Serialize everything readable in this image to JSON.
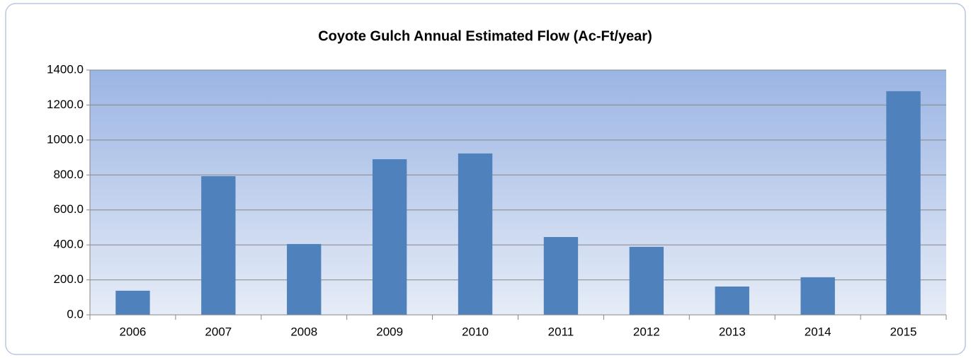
{
  "chart_data": {
    "type": "bar",
    "title": "Coyote Gulch Annual Estimated Flow (Ac-Ft/year)",
    "categories": [
      "2006",
      "2007",
      "2008",
      "2009",
      "2010",
      "2011",
      "2012",
      "2013",
      "2014",
      "2015"
    ],
    "values": [
      138,
      793,
      405,
      890,
      923,
      445,
      389,
      162,
      215,
      1279
    ],
    "color": "#4f81bd",
    "ylim": [
      0,
      1400
    ],
    "yticks": [
      {
        "value": 0,
        "label": "0.0"
      },
      {
        "value": 200,
        "label": "200.0"
      },
      {
        "value": 400,
        "label": "400.0"
      },
      {
        "value": 600,
        "label": "600.0"
      },
      {
        "value": 800,
        "label": "800.0"
      },
      {
        "value": 1000,
        "label": "1000.0"
      },
      {
        "value": 1200,
        "label": "1200.0"
      },
      {
        "value": 1400,
        "label": "1400.0"
      }
    ],
    "grid": true
  }
}
